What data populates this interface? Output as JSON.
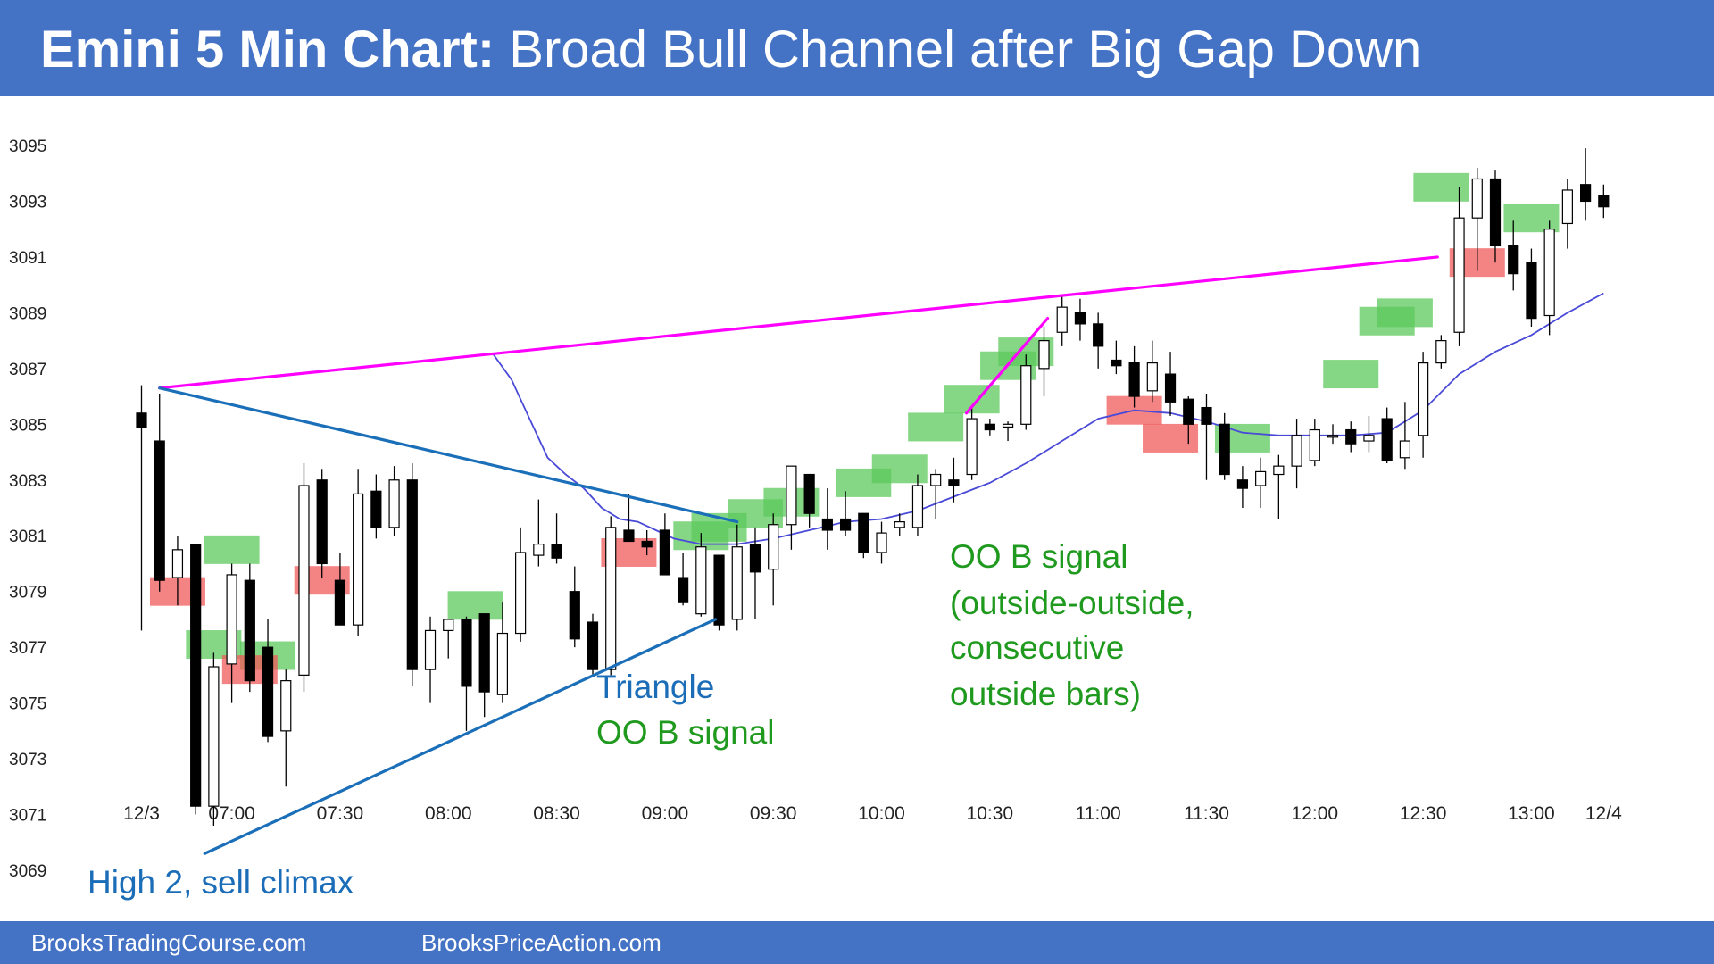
{
  "title": {
    "bold": "Emini 5 Min Chart:",
    "rest": " Broad Bull Channel after Big Gap Down"
  },
  "footer": {
    "left": "BrooksTradingCourse.com",
    "right": "BrooksPriceAction.com"
  },
  "colors": {
    "header": "#4472c4",
    "bull_signal": "#5cc95c",
    "bear_signal": "#f05a5a",
    "ema": "#4a4ad8",
    "magenta": "#ff00ff",
    "trendline": "#1a6fb8",
    "annotation_blue": "#1b6db8",
    "annotation_green": "#1f9a1f"
  },
  "annotations": {
    "high2": "High 2, sell climax",
    "triangle": "Triangle",
    "triangle_signal": "OO B signal",
    "oo_title": "OO B signal",
    "oo_1": "(outside-outside,",
    "oo_2": "consecutive",
    "oo_3": "outside bars)"
  },
  "chart_data": {
    "type": "candlestick",
    "title": "Emini 5 Min Chart: Broad Bull Channel after Big Gap Down",
    "ylim": [
      3068.5,
      3095.5
    ],
    "y_ticks": [
      3095,
      3093,
      3091,
      3089,
      3087,
      3085,
      3083,
      3081,
      3079,
      3077,
      3075,
      3073,
      3071,
      3069
    ],
    "x_ticks": [
      "12/3",
      "07:00",
      "07:30",
      "08:00",
      "08:30",
      "09:00",
      "09:30",
      "10:00",
      "10:30",
      "11:00",
      "11:30",
      "12:00",
      "12:30",
      "13:00",
      "12/4"
    ],
    "x_tick_bar_index": [
      0,
      5,
      11,
      17,
      23,
      29,
      35,
      41,
      47,
      53,
      59,
      65,
      71,
      77,
      81
    ],
    "bars": [
      {
        "o": 3085.4,
        "h": 3086.4,
        "l": 3077.6,
        "c": 3084.9
      },
      {
        "o": 3084.4,
        "h": 3086.1,
        "l": 3079.0,
        "c": 3079.4
      },
      {
        "o": 3079.5,
        "h": 3081.0,
        "l": 3078.5,
        "c": 3080.5
      },
      {
        "o": 3080.7,
        "h": 3080.7,
        "l": 3071.0,
        "c": 3071.3
      },
      {
        "o": 3071.3,
        "h": 3076.8,
        "l": 3070.6,
        "c": 3076.3
      },
      {
        "o": 3076.4,
        "h": 3080.0,
        "l": 3075.0,
        "c": 3079.6
      },
      {
        "o": 3079.4,
        "h": 3080.0,
        "l": 3075.4,
        "c": 3075.8
      },
      {
        "o": 3077.0,
        "h": 3078.0,
        "l": 3073.6,
        "c": 3073.8
      },
      {
        "o": 3074.0,
        "h": 3076.2,
        "l": 3072.0,
        "c": 3075.8
      },
      {
        "o": 3076.0,
        "h": 3083.6,
        "l": 3075.4,
        "c": 3082.8
      },
      {
        "o": 3083.0,
        "h": 3083.4,
        "l": 3079.5,
        "c": 3080.0
      },
      {
        "o": 3079.4,
        "h": 3080.4,
        "l": 3077.8,
        "c": 3077.8
      },
      {
        "o": 3077.8,
        "h": 3083.4,
        "l": 3077.4,
        "c": 3082.5
      },
      {
        "o": 3082.6,
        "h": 3083.2,
        "l": 3080.9,
        "c": 3081.3
      },
      {
        "o": 3081.3,
        "h": 3083.5,
        "l": 3081.0,
        "c": 3083.0
      },
      {
        "o": 3083.0,
        "h": 3083.6,
        "l": 3075.6,
        "c": 3076.2
      },
      {
        "o": 3076.2,
        "h": 3078.1,
        "l": 3075.0,
        "c": 3077.6
      },
      {
        "o": 3077.6,
        "h": 3078.0,
        "l": 3076.6,
        "c": 3078.0
      },
      {
        "o": 3078.0,
        "h": 3078.1,
        "l": 3074.0,
        "c": 3075.6
      },
      {
        "o": 3078.2,
        "h": 3078.2,
        "l": 3074.5,
        "c": 3075.4
      },
      {
        "o": 3075.3,
        "h": 3078.6,
        "l": 3075.0,
        "c": 3077.5
      },
      {
        "o": 3077.5,
        "h": 3081.3,
        "l": 3077.2,
        "c": 3080.4
      },
      {
        "o": 3080.3,
        "h": 3082.3,
        "l": 3079.9,
        "c": 3080.7
      },
      {
        "o": 3080.7,
        "h": 3081.8,
        "l": 3080.0,
        "c": 3080.2
      },
      {
        "o": 3079.0,
        "h": 3079.9,
        "l": 3077.0,
        "c": 3077.3
      },
      {
        "o": 3077.9,
        "h": 3078.2,
        "l": 3076.0,
        "c": 3076.2
      },
      {
        "o": 3076.2,
        "h": 3081.7,
        "l": 3076.0,
        "c": 3081.3
      },
      {
        "o": 3081.2,
        "h": 3082.5,
        "l": 3080.9,
        "c": 3080.8
      },
      {
        "o": 3080.8,
        "h": 3081.2,
        "l": 3080.3,
        "c": 3080.6
      },
      {
        "o": 3081.2,
        "h": 3081.8,
        "l": 3079.6,
        "c": 3079.6
      },
      {
        "o": 3079.5,
        "h": 3080.4,
        "l": 3078.5,
        "c": 3078.6
      },
      {
        "o": 3078.2,
        "h": 3081.1,
        "l": 3078.1,
        "c": 3080.6
      },
      {
        "o": 3080.3,
        "h": 3080.3,
        "l": 3077.6,
        "c": 3077.8
      },
      {
        "o": 3078.0,
        "h": 3081.4,
        "l": 3077.6,
        "c": 3080.6
      },
      {
        "o": 3080.7,
        "h": 3081.3,
        "l": 3078.0,
        "c": 3079.7
      },
      {
        "o": 3079.8,
        "h": 3081.8,
        "l": 3078.5,
        "c": 3081.4
      },
      {
        "o": 3081.4,
        "h": 3083.5,
        "l": 3080.5,
        "c": 3083.5
      },
      {
        "o": 3083.2,
        "h": 3083.2,
        "l": 3081.3,
        "c": 3081.8
      },
      {
        "o": 3081.6,
        "h": 3082.7,
        "l": 3080.5,
        "c": 3081.2
      },
      {
        "o": 3081.6,
        "h": 3082.6,
        "l": 3081.0,
        "c": 3081.2
      },
      {
        "o": 3081.8,
        "h": 3081.8,
        "l": 3080.2,
        "c": 3080.4
      },
      {
        "o": 3080.4,
        "h": 3081.5,
        "l": 3080.0,
        "c": 3081.1
      },
      {
        "o": 3081.3,
        "h": 3081.8,
        "l": 3081.0,
        "c": 3081.5
      },
      {
        "o": 3081.3,
        "h": 3083.2,
        "l": 3081.0,
        "c": 3082.8
      },
      {
        "o": 3082.8,
        "h": 3083.4,
        "l": 3081.6,
        "c": 3083.2
      },
      {
        "o": 3083.0,
        "h": 3083.8,
        "l": 3082.2,
        "c": 3082.8
      },
      {
        "o": 3083.2,
        "h": 3085.6,
        "l": 3083.0,
        "c": 3085.2
      },
      {
        "o": 3085.0,
        "h": 3085.2,
        "l": 3084.6,
        "c": 3084.8
      },
      {
        "o": 3084.9,
        "h": 3085.1,
        "l": 3084.4,
        "c": 3085.0
      },
      {
        "o": 3085.0,
        "h": 3087.5,
        "l": 3084.8,
        "c": 3087.1
      },
      {
        "o": 3087.0,
        "h": 3088.5,
        "l": 3086.0,
        "c": 3088.0
      },
      {
        "o": 3088.3,
        "h": 3089.6,
        "l": 3087.8,
        "c": 3089.2
      },
      {
        "o": 3089.0,
        "h": 3089.5,
        "l": 3088.0,
        "c": 3088.6
      },
      {
        "o": 3088.6,
        "h": 3089.0,
        "l": 3087.0,
        "c": 3087.8
      },
      {
        "o": 3087.3,
        "h": 3088.0,
        "l": 3086.8,
        "c": 3087.1
      },
      {
        "o": 3087.2,
        "h": 3087.8,
        "l": 3085.6,
        "c": 3086.0
      },
      {
        "o": 3086.2,
        "h": 3088.0,
        "l": 3085.8,
        "c": 3087.2
      },
      {
        "o": 3086.8,
        "h": 3087.6,
        "l": 3085.3,
        "c": 3085.8
      },
      {
        "o": 3085.9,
        "h": 3086.0,
        "l": 3084.3,
        "c": 3085.0
      },
      {
        "o": 3085.6,
        "h": 3086.1,
        "l": 3083.0,
        "c": 3085.0
      },
      {
        "o": 3085.0,
        "h": 3085.4,
        "l": 3083.0,
        "c": 3083.2
      },
      {
        "o": 3083.0,
        "h": 3083.5,
        "l": 3082.0,
        "c": 3082.7
      },
      {
        "o": 3082.8,
        "h": 3083.8,
        "l": 3082.0,
        "c": 3083.3
      },
      {
        "o": 3083.2,
        "h": 3083.9,
        "l": 3081.6,
        "c": 3083.5
      },
      {
        "o": 3083.5,
        "h": 3085.2,
        "l": 3082.7,
        "c": 3084.6
      },
      {
        "o": 3083.7,
        "h": 3085.2,
        "l": 3083.5,
        "c": 3084.8
      },
      {
        "o": 3084.6,
        "h": 3085.0,
        "l": 3084.3,
        "c": 3084.6
      },
      {
        "o": 3084.8,
        "h": 3085.1,
        "l": 3084.0,
        "c": 3084.3
      },
      {
        "o": 3084.4,
        "h": 3085.3,
        "l": 3084.0,
        "c": 3084.6
      },
      {
        "o": 3085.2,
        "h": 3085.6,
        "l": 3083.6,
        "c": 3083.7
      },
      {
        "o": 3083.8,
        "h": 3085.8,
        "l": 3083.4,
        "c": 3084.4
      },
      {
        "o": 3084.6,
        "h": 3087.6,
        "l": 3083.8,
        "c": 3087.2
      },
      {
        "o": 3087.2,
        "h": 3088.2,
        "l": 3087.0,
        "c": 3088.0
      },
      {
        "o": 3088.3,
        "h": 3093.5,
        "l": 3087.8,
        "c": 3092.4
      },
      {
        "o": 3092.4,
        "h": 3094.2,
        "l": 3090.5,
        "c": 3093.8
      },
      {
        "o": 3093.8,
        "h": 3094.1,
        "l": 3090.8,
        "c": 3091.4
      },
      {
        "o": 3091.4,
        "h": 3092.3,
        "l": 3089.8,
        "c": 3090.4
      },
      {
        "o": 3090.8,
        "h": 3091.3,
        "l": 3088.5,
        "c": 3088.8
      },
      {
        "o": 3088.9,
        "h": 3092.3,
        "l": 3088.2,
        "c": 3092.0
      },
      {
        "o": 3092.2,
        "h": 3093.8,
        "l": 3091.3,
        "c": 3093.4
      },
      {
        "o": 3093.6,
        "h": 3094.9,
        "l": 3092.3,
        "c": 3093.0
      },
      {
        "o": 3093.2,
        "h": 3093.6,
        "l": 3092.4,
        "c": 3092.8
      }
    ],
    "ema": [
      {
        "i": 19.5,
        "y": 3087.5
      },
      {
        "i": 20.5,
        "y": 3086.6
      },
      {
        "i": 21.5,
        "y": 3085.2
      },
      {
        "i": 22.5,
        "y": 3083.8
      },
      {
        "i": 23.5,
        "y": 3083.2
      },
      {
        "i": 24.5,
        "y": 3082.7
      },
      {
        "i": 25.5,
        "y": 3082.0
      },
      {
        "i": 26.5,
        "y": 3081.6
      },
      {
        "i": 27.5,
        "y": 3081.5
      },
      {
        "i": 28.5,
        "y": 3081.2
      },
      {
        "i": 29.5,
        "y": 3080.9
      },
      {
        "i": 31.0,
        "y": 3080.7
      },
      {
        "i": 33.0,
        "y": 3080.7
      },
      {
        "i": 35.0,
        "y": 3080.9
      },
      {
        "i": 37.0,
        "y": 3081.2
      },
      {
        "i": 39.0,
        "y": 3081.5
      },
      {
        "i": 41.0,
        "y": 3081.6
      },
      {
        "i": 43.0,
        "y": 3081.9
      },
      {
        "i": 45.0,
        "y": 3082.4
      },
      {
        "i": 47.0,
        "y": 3082.9
      },
      {
        "i": 49.0,
        "y": 3083.6
      },
      {
        "i": 51.0,
        "y": 3084.4
      },
      {
        "i": 53.0,
        "y": 3085.2
      },
      {
        "i": 55.0,
        "y": 3085.5
      },
      {
        "i": 57.0,
        "y": 3085.4
      },
      {
        "i": 59.0,
        "y": 3085.1
      },
      {
        "i": 61.0,
        "y": 3084.7
      },
      {
        "i": 63.0,
        "y": 3084.6
      },
      {
        "i": 65.0,
        "y": 3084.6
      },
      {
        "i": 67.0,
        "y": 3084.6
      },
      {
        "i": 69.0,
        "y": 3084.7
      },
      {
        "i": 71.0,
        "y": 3085.5
      },
      {
        "i": 73.0,
        "y": 3086.8
      },
      {
        "i": 75.0,
        "y": 3087.6
      },
      {
        "i": 77.0,
        "y": 3088.2
      },
      {
        "i": 79.0,
        "y": 3089.0
      },
      {
        "i": 81.0,
        "y": 3089.7
      }
    ],
    "signal_boxes": [
      {
        "type": "bear",
        "i": 2,
        "y": 3079.0
      },
      {
        "type": "bull",
        "i": 5,
        "y": 3080.5
      },
      {
        "type": "bull",
        "i": 4,
        "y": 3077.1
      },
      {
        "type": "bull",
        "i": 7,
        "y": 3076.7
      },
      {
        "type": "bear",
        "i": 6,
        "y": 3076.2
      },
      {
        "type": "bear",
        "i": 10,
        "y": 3079.4
      },
      {
        "type": "bull",
        "i": 18.5,
        "y": 3078.5
      },
      {
        "type": "bear",
        "i": 27,
        "y": 3080.4
      },
      {
        "type": "bull",
        "i": 31,
        "y": 3081.0
      },
      {
        "type": "bull",
        "i": 32,
        "y": 3081.3
      },
      {
        "type": "bull",
        "i": 34,
        "y": 3081.8
      },
      {
        "type": "bull",
        "i": 36,
        "y": 3082.2
      },
      {
        "type": "bull",
        "i": 40,
        "y": 3082.9
      },
      {
        "type": "bull",
        "i": 42,
        "y": 3083.4
      },
      {
        "type": "bull",
        "i": 44,
        "y": 3084.9
      },
      {
        "type": "bull",
        "i": 46,
        "y": 3085.9
      },
      {
        "type": "bull",
        "i": 48,
        "y": 3087.1
      },
      {
        "type": "bull",
        "i": 49,
        "y": 3087.6
      },
      {
        "type": "bear",
        "i": 55,
        "y": 3085.5
      },
      {
        "type": "bear",
        "i": 57,
        "y": 3084.5
      },
      {
        "type": "bull",
        "i": 61,
        "y": 3084.5
      },
      {
        "type": "bull",
        "i": 67,
        "y": 3086.8
      },
      {
        "type": "bull",
        "i": 69,
        "y": 3088.7
      },
      {
        "type": "bull",
        "i": 70,
        "y": 3089.0
      },
      {
        "type": "bull",
        "i": 72,
        "y": 3093.5
      },
      {
        "type": "bear",
        "i": 74,
        "y": 3090.8
      },
      {
        "type": "bull",
        "i": 77,
        "y": 3092.4
      }
    ],
    "lines": [
      {
        "name": "magenta-upper",
        "color": "magenta",
        "from": {
          "i": 1,
          "y": 3086.3
        },
        "to": {
          "i": 71.8,
          "y": 3091.0
        }
      },
      {
        "name": "magenta-leg",
        "color": "magenta",
        "from": {
          "i": 45.7,
          "y": 3085.4
        },
        "to": {
          "i": 50.2,
          "y": 3088.8
        }
      },
      {
        "name": "triangle-upper",
        "color": "trendline",
        "from": {
          "i": 1,
          "y": 3086.3
        },
        "to": {
          "i": 33.0,
          "y": 3081.5
        }
      },
      {
        "name": "triangle-lower",
        "color": "trendline",
        "from": {
          "i": 3.5,
          "y": 3069.6
        },
        "to": {
          "i": 31.8,
          "y": 3078.0
        }
      }
    ]
  }
}
